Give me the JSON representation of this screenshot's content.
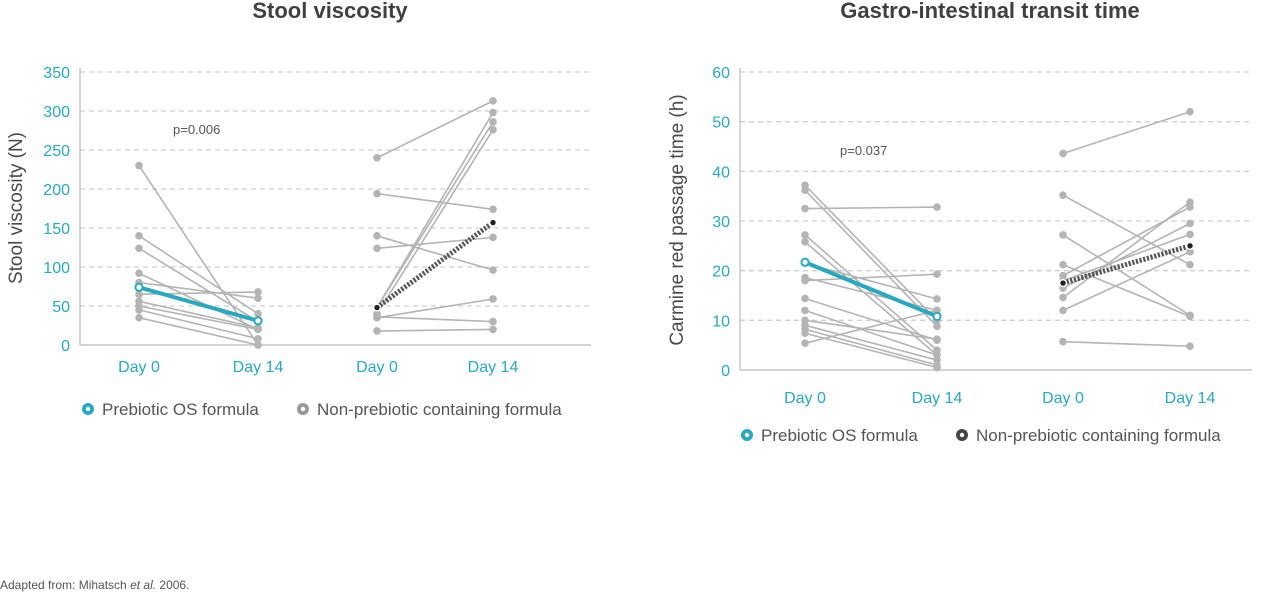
{
  "source_note": {
    "prefix": "Adapted from: Mihatsch ",
    "em": "et al.",
    "suffix": " 2006."
  },
  "colors": {
    "prebiotic": "#2aa8c0",
    "individual": "#b4b4b4",
    "mean_control": "#555555",
    "axis_text": "#2aa8c0"
  },
  "chart_data": [
    {
      "type": "line",
      "title": "Stool viscosity",
      "ylabel": "Stool viscosity (N)",
      "ylim": [
        0,
        350
      ],
      "yticks": [
        0,
        50,
        100,
        150,
        200,
        250,
        300,
        350
      ],
      "grid": "horizontal-dashed",
      "categories": [
        "Day 0",
        "Day 14",
        "Day 0",
        "Day 14"
      ],
      "annotation": "p=0.006",
      "legend": {
        "position": "bottom",
        "items": [
          {
            "label": "Prebiotic OS formula",
            "color": "#2aa8c0"
          },
          {
            "label": "Non-prebiotic containing formula",
            "color": "#999999"
          }
        ]
      },
      "groups": [
        {
          "legend_item": "Prebiotic OS formula",
          "individuals": [
            [
              230,
              0
            ],
            [
              140,
              40
            ],
            [
              124,
              30
            ],
            [
              92,
              20
            ],
            [
              80,
              60
            ],
            [
              65,
              68
            ],
            [
              56,
              22
            ],
            [
              50,
              20
            ],
            [
              45,
              8
            ],
            [
              35,
              0
            ]
          ],
          "mean": [
            74,
            31
          ]
        },
        {
          "legend_item": "Non-prebiotic containing formula",
          "individuals": [
            [
              240,
              313
            ],
            [
              194,
              174
            ],
            [
              140,
              96
            ],
            [
              124,
              138
            ],
            [
              48,
              298
            ],
            [
              48,
              286
            ],
            [
              40,
              276
            ],
            [
              36,
              30
            ],
            [
              35,
              59
            ],
            [
              18,
              20
            ]
          ],
          "mean": [
            48,
            157
          ]
        }
      ]
    },
    {
      "type": "line",
      "title": "Gastro-intestinal transit time",
      "ylabel": "Carmine red passage time (h)",
      "ylim": [
        0,
        60
      ],
      "yticks": [
        0,
        10,
        20,
        30,
        40,
        50,
        60
      ],
      "grid": "horizontal-dashed",
      "categories": [
        "Day 0",
        "Day 14",
        "Day 0",
        "Day 14"
      ],
      "annotation": "p=0.037",
      "legend": {
        "position": "bottom",
        "items": [
          {
            "label": "Prebiotic OS formula",
            "color": "#2aa8c0"
          },
          {
            "label": "Non-prebiotic containing formula",
            "color": "#444444"
          }
        ]
      },
      "groups": [
        {
          "legend_item": "Prebiotic OS formula",
          "individuals": [
            [
              37.2,
              10
            ],
            [
              36.2,
              8.8
            ],
            [
              32.5,
              32.8
            ],
            [
              27.2,
              4
            ],
            [
              25.8,
              3
            ],
            [
              21.5,
              14.3
            ],
            [
              18.6,
              12
            ],
            [
              18,
              19.3
            ],
            [
              14.4,
              6
            ],
            [
              12,
              3
            ],
            [
              10,
              6.2
            ],
            [
              9,
              2
            ],
            [
              8.2,
              1
            ],
            [
              7.4,
              0.5
            ],
            [
              5.4,
              12
            ]
          ],
          "mean": [
            21.7,
            10.8
          ]
        },
        {
          "legend_item": "Non-prebiotic containing formula",
          "individuals": [
            [
              43.6,
              52
            ],
            [
              35.2,
              21.2
            ],
            [
              27.2,
              11
            ],
            [
              21.2,
              10.8
            ],
            [
              19,
              32.8
            ],
            [
              18,
              27.3
            ],
            [
              16.5,
              29.5
            ],
            [
              14.6,
              33.8
            ],
            [
              12,
              23.8
            ],
            [
              5.7,
              4.8
            ]
          ],
          "mean": [
            17.5,
            25
          ]
        }
      ]
    }
  ]
}
